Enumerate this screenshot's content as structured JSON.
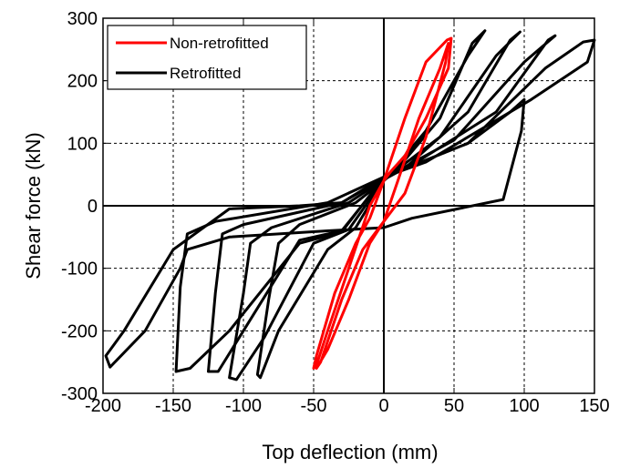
{
  "chart_data": {
    "type": "line",
    "title": "",
    "xlabel": "Top deflection (mm)",
    "ylabel": "Shear force (kN)",
    "xlim": [
      -200,
      150
    ],
    "ylim": [
      -300,
      300
    ],
    "xticks": [
      -200,
      -150,
      -100,
      -50,
      0,
      50,
      100,
      150
    ],
    "yticks": [
      -300,
      -200,
      -100,
      0,
      100,
      200,
      300
    ],
    "grid": true,
    "legend_position": "top-left",
    "series": [
      {
        "name": "Retrofitted",
        "color": "#000000",
        "loops": [
          {
            "x": [
              0,
              30,
              60,
              72,
              63,
              40,
              10,
              0,
              -20,
              -60,
              -75,
              -82,
              -90,
              -88,
              -75,
              -40,
              -20,
              0
            ],
            "y": [
              40,
              120,
              240,
              280,
              260,
              140,
              60,
              40,
              5,
              -30,
              -60,
              -150,
              -270,
              -275,
              -200,
              -70,
              -35,
              40
            ]
          },
          {
            "x": [
              0,
              40,
              80,
              97,
              90,
              60,
              15,
              0,
              -25,
              -80,
              -95,
              -100,
              -110,
              -105,
              -85,
              -50,
              -25,
              0
            ],
            "y": [
              42,
              110,
              240,
              278,
              265,
              150,
              60,
              42,
              5,
              -35,
              -60,
              -140,
              -275,
              -278,
              -210,
              -60,
              -38,
              42
            ]
          },
          {
            "x": [
              0,
              50,
              100,
              122,
              117,
              80,
              20,
              0,
              -30,
              -100,
              -115,
              -120,
              -125,
              -118,
              -100,
              -60,
              -30,
              0
            ],
            "y": [
              44,
              105,
              230,
              272,
              265,
              150,
              65,
              44,
              5,
              -30,
              -45,
              -140,
              -265,
              -265,
              -200,
              -55,
              -40,
              44
            ]
          },
          {
            "x": [
              0,
              60,
              115,
              142,
              150,
              145,
              105,
              30,
              0,
              -40,
              -120,
              -140,
              -145,
              -148,
              -138,
              -110,
              -60,
              -30,
              0
            ],
            "y": [
              46,
              100,
              220,
              262,
              265,
              230,
              170,
              70,
              46,
              5,
              -25,
              -45,
              -130,
              -265,
              -260,
              -200,
              -60,
              -42,
              46
            ]
          },
          {
            "x": [
              0,
              60,
              90,
              100,
              98,
              85,
              20,
              0,
              -40,
              -110,
              -140,
              -145,
              -170,
              -195,
              -198,
              -185,
              -150,
              -110,
              -60,
              -30,
              0
            ],
            "y": [
              46,
              100,
              150,
              170,
              120,
              10,
              -20,
              -35,
              -40,
              -50,
              -70,
              -100,
              -200,
              -258,
              -240,
              -200,
              -70,
              -5,
              0,
              5,
              46
            ]
          }
        ]
      },
      {
        "name": "Non-retrofitted",
        "color": "#ff0000",
        "loops": [
          {
            "x": [
              0,
              15,
              30,
              45,
              48,
              46,
              30,
              15,
              5,
              0,
              -10,
              -25,
              -40,
              -48,
              -50,
              -48,
              -35,
              -20,
              -10,
              0
            ],
            "y": [
              40,
              140,
              230,
              265,
              268,
              220,
              140,
              80,
              55,
              40,
              0,
              -100,
              -200,
              -255,
              -260,
              -240,
              -140,
              -60,
              -20,
              40
            ]
          },
          {
            "x": [
              0,
              10,
              25,
              40,
              46,
              44,
              30,
              15,
              0,
              -10,
              -25,
              -40,
              -48,
              -45,
              -30,
              -15,
              0
            ],
            "y": [
              -25,
              40,
              140,
              220,
              260,
              230,
              110,
              20,
              -25,
              -60,
              -150,
              -230,
              -260,
              -250,
              -150,
              -70,
              -25
            ]
          }
        ]
      }
    ],
    "legend": [
      "Non-retrofitted",
      "Retrofitted"
    ]
  }
}
